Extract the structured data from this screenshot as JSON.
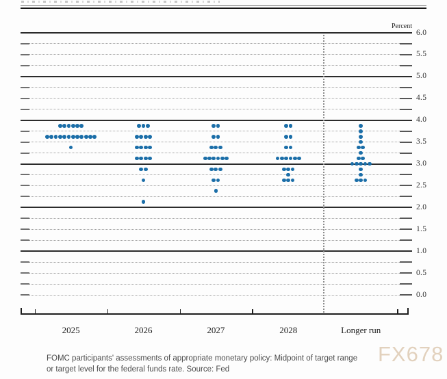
{
  "header": {
    "percent_label": "Percent"
  },
  "chart_data": {
    "type": "scatter",
    "subtype": "fomc-dot-plot",
    "title": "",
    "xlabel": "",
    "ylabel": "Percent",
    "ylim": [
      0.0,
      6.0
    ],
    "grid_step": 0.25,
    "grid": true,
    "legend_position": "none",
    "dot_color": "#1b6ea8",
    "categories": [
      "2025",
      "2026",
      "2027",
      "2028",
      "Longer run"
    ],
    "y_axis_labels": [
      "6.0",
      "5.5",
      "5.0",
      "4.5",
      "4.0",
      "3.5",
      "3.0",
      "2.5",
      "2.0",
      "1.5",
      "1.0",
      "0.5",
      "0.0"
    ],
    "columns": [
      {
        "label": "2025",
        "dots": [
          {
            "rate": 3.875,
            "count": 6
          },
          {
            "rate": 3.625,
            "count": 12
          },
          {
            "rate": 3.375,
            "count": 1
          }
        ]
      },
      {
        "label": "2026",
        "dots": [
          {
            "rate": 3.875,
            "count": 3
          },
          {
            "rate": 3.625,
            "count": 4
          },
          {
            "rate": 3.375,
            "count": 4
          },
          {
            "rate": 3.125,
            "count": 4
          },
          {
            "rate": 2.875,
            "count": 2
          },
          {
            "rate": 2.625,
            "count": 1
          },
          {
            "rate": 2.125,
            "count": 1
          }
        ]
      },
      {
        "label": "2027",
        "dots": [
          {
            "rate": 3.875,
            "count": 2
          },
          {
            "rate": 3.625,
            "count": 2
          },
          {
            "rate": 3.375,
            "count": 3
          },
          {
            "rate": 3.125,
            "count": 6
          },
          {
            "rate": 2.875,
            "count": 3
          },
          {
            "rate": 2.625,
            "count": 2
          },
          {
            "rate": 2.375,
            "count": 1
          }
        ]
      },
      {
        "label": "2028",
        "dots": [
          {
            "rate": 3.875,
            "count": 2
          },
          {
            "rate": 3.625,
            "count": 2
          },
          {
            "rate": 3.375,
            "count": 2
          },
          {
            "rate": 3.125,
            "count": 6
          },
          {
            "rate": 2.875,
            "count": 3
          },
          {
            "rate": 2.75,
            "count": 1
          },
          {
            "rate": 2.625,
            "count": 3
          }
        ]
      },
      {
        "label": "Longer run",
        "dots": [
          {
            "rate": 3.875,
            "count": 1
          },
          {
            "rate": 3.75,
            "count": 1
          },
          {
            "rate": 3.625,
            "count": 1
          },
          {
            "rate": 3.5,
            "count": 1
          },
          {
            "rate": 3.375,
            "count": 2
          },
          {
            "rate": 3.25,
            "count": 1
          },
          {
            "rate": 3.125,
            "count": 2
          },
          {
            "rate": 3.0,
            "count": 5
          },
          {
            "rate": 2.875,
            "count": 1
          },
          {
            "rate": 2.75,
            "count": 1
          },
          {
            "rate": 2.625,
            "count": 3
          }
        ]
      }
    ]
  },
  "caption": {
    "line1": "FOMC participants' assessments of appropriate monetary policy: Midpoint of target range",
    "line2": "or target level for the federal funds rate. Source: Fed"
  },
  "watermark": {
    "text": "FX678",
    "color": "#d9c3a8"
  }
}
